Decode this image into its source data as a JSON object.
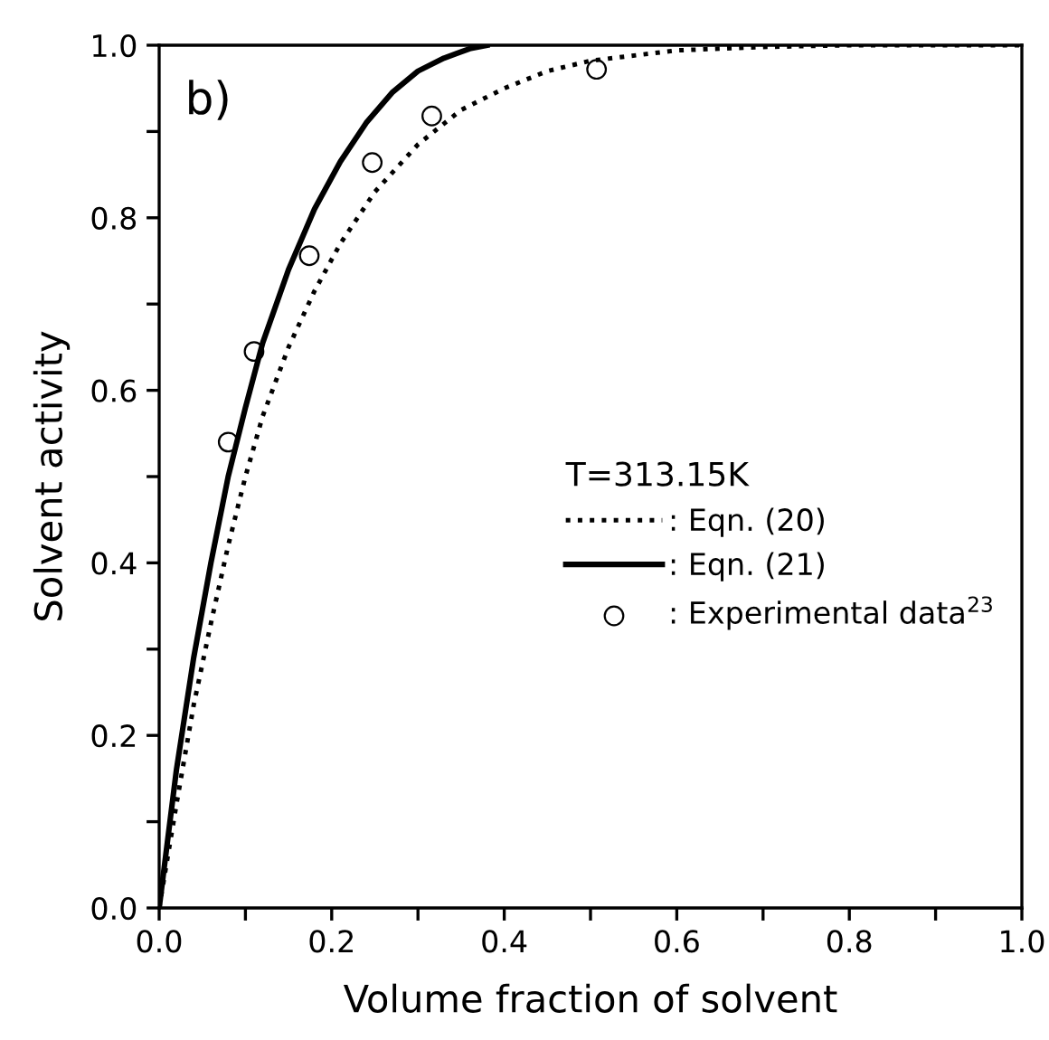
{
  "chart_data": {
    "type": "line",
    "xlabel": "Volume fraction of solvent",
    "ylabel": "Solvent activity",
    "legend_title": "T=313.15K",
    "annotations": [
      "b)"
    ],
    "xlim": [
      0,
      1
    ],
    "ylim": [
      0,
      1
    ],
    "xticks": [
      {
        "value": 0,
        "label": "0.0"
      },
      {
        "value": 0.1,
        "label": null
      },
      {
        "value": 0.2,
        "label": "0.2"
      },
      {
        "value": 0.3,
        "label": null
      },
      {
        "value": 0.4,
        "label": "0.4"
      },
      {
        "value": 0.5,
        "label": null
      },
      {
        "value": 0.6,
        "label": "0.6"
      },
      {
        "value": 0.7,
        "label": null
      },
      {
        "value": 0.8,
        "label": "0.8"
      },
      {
        "value": 0.9,
        "label": null
      },
      {
        "value": 1,
        "label": "1.0"
      }
    ],
    "yticks": [
      {
        "value": 0,
        "label": "0.0"
      },
      {
        "value": 0.1,
        "label": null
      },
      {
        "value": 0.2,
        "label": "0.2"
      },
      {
        "value": 0.3,
        "label": null
      },
      {
        "value": 0.4,
        "label": "0.4"
      },
      {
        "value": 0.5,
        "label": null
      },
      {
        "value": 0.6,
        "label": "0.6"
      },
      {
        "value": 0.7,
        "label": null
      },
      {
        "value": 0.8,
        "label": "0.8"
      },
      {
        "value": 0.9,
        "label": null
      },
      {
        "value": 1,
        "label": "1.0"
      }
    ],
    "grid": false,
    "legend": "right",
    "series": [
      {
        "name": ": Eqn. (20)",
        "line_style": "dotted",
        "marker": "none",
        "color": "#000000",
        "x": [
          0,
          0.02,
          0.04,
          0.06,
          0.08,
          0.1,
          0.12,
          0.15,
          0.18,
          0.21,
          0.25,
          0.3,
          0.35,
          0.4,
          0.45,
          0.5,
          0.6,
          0.7,
          0.8,
          1.0
        ],
        "values": [
          0,
          0.12,
          0.235,
          0.33,
          0.42,
          0.5,
          0.57,
          0.65,
          0.715,
          0.77,
          0.83,
          0.885,
          0.925,
          0.95,
          0.97,
          0.982,
          0.994,
          0.998,
          1.0,
          1.0
        ]
      },
      {
        "name": ": Eqn. (21)",
        "line_style": "solid",
        "marker": "none",
        "color": "#000000",
        "x": [
          0,
          0.02,
          0.04,
          0.06,
          0.08,
          0.1,
          0.12,
          0.15,
          0.18,
          0.21,
          0.24,
          0.27,
          0.3,
          0.33,
          0.36,
          0.38
        ],
        "values": [
          0,
          0.16,
          0.29,
          0.4,
          0.5,
          0.58,
          0.655,
          0.74,
          0.81,
          0.865,
          0.91,
          0.945,
          0.97,
          0.985,
          0.996,
          1.0
        ]
      },
      {
        "name": ": Experimental data$^{23}$",
        "type": "scatter",
        "marker": "circle",
        "color": "#000000",
        "x": [
          0.08,
          0.11,
          0.174,
          0.247,
          0.316,
          0.507
        ],
        "values": [
          0.54,
          0.645,
          0.756,
          0.864,
          0.918,
          0.972
        ]
      }
    ]
  }
}
